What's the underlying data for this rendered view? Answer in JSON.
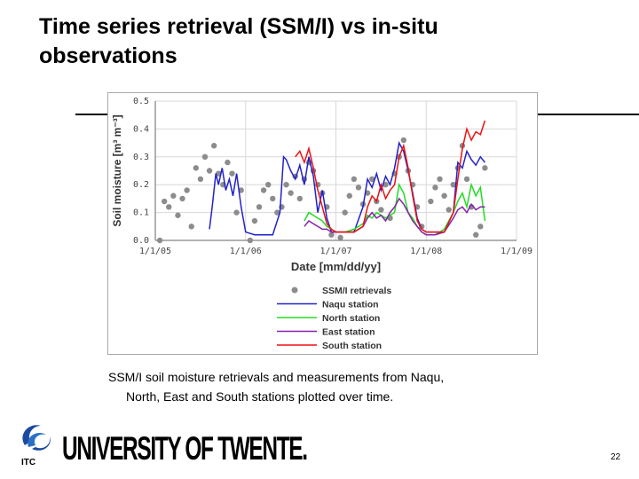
{
  "slide": {
    "title_line1": "Time series retrieval (SSM/I) vs in-situ",
    "title_line2": "observations",
    "caption_line1": "SSM/I soil moisture retrievals and measurements from Naqu,",
    "caption_line2": "North, East and South stations plotted over time.",
    "logo_text": "UNIVERSITY OF TWENTE.",
    "logo_subtext": "ITC",
    "page_number": "22"
  },
  "chart_data": {
    "type": "line",
    "xlabel": "Date [mm/dd/yy]",
    "ylabel": "Soil moisture [m³ m⁻³]",
    "xlim": [
      2005.0,
      2009.0
    ],
    "ylim": [
      0.0,
      0.5
    ],
    "x_ticks": [
      {
        "value": 2005.0,
        "label": "1/1/05"
      },
      {
        "value": 2006.0,
        "label": "1/1/06"
      },
      {
        "value": 2007.0,
        "label": "1/1/07"
      },
      {
        "value": 2008.0,
        "label": "1/1/08"
      },
      {
        "value": 2009.0,
        "label": "1/1/09"
      }
    ],
    "y_ticks": [
      {
        "value": 0.0,
        "label": "0.0"
      },
      {
        "value": 0.1,
        "label": "0.1"
      },
      {
        "value": 0.2,
        "label": "0.2"
      },
      {
        "value": 0.3,
        "label": "0.3"
      },
      {
        "value": 0.4,
        "label": "0.4"
      },
      {
        "value": 0.5,
        "label": "0.5"
      }
    ],
    "grid": true,
    "legend_position": "bottom-center",
    "series": [
      {
        "name": "SSM/I retrievals",
        "kind": "scatter",
        "color": "#8c8c8c",
        "x": [
          2005.05,
          2005.1,
          2005.15,
          2005.2,
          2005.25,
          2005.3,
          2005.35,
          2005.4,
          2005.45,
          2005.5,
          2005.55,
          2005.6,
          2005.65,
          2005.7,
          2005.75,
          2005.8,
          2005.85,
          2005.9,
          2005.95,
          2006.05,
          2006.1,
          2006.15,
          2006.2,
          2006.25,
          2006.3,
          2006.35,
          2006.4,
          2006.45,
          2006.5,
          2006.55,
          2006.6,
          2006.65,
          2006.7,
          2006.75,
          2006.8,
          2006.85,
          2006.9,
          2006.95,
          2007.05,
          2007.1,
          2007.15,
          2007.2,
          2007.25,
          2007.3,
          2007.35,
          2007.4,
          2007.45,
          2007.5,
          2007.55,
          2007.6,
          2007.65,
          2007.7,
          2007.75,
          2007.8,
          2007.85,
          2007.9,
          2007.95,
          2008.05,
          2008.1,
          2008.15,
          2008.2,
          2008.25,
          2008.3,
          2008.35,
          2008.4,
          2008.45,
          2008.5,
          2008.55,
          2008.6,
          2008.65
        ],
        "y": [
          0.0,
          0.14,
          0.12,
          0.16,
          0.09,
          0.15,
          0.18,
          0.05,
          0.26,
          0.22,
          0.3,
          0.25,
          0.34,
          0.24,
          0.2,
          0.28,
          0.24,
          0.1,
          0.18,
          0.0,
          0.07,
          0.12,
          0.18,
          0.2,
          0.15,
          0.1,
          0.12,
          0.2,
          0.17,
          0.23,
          0.15,
          0.22,
          0.28,
          0.25,
          0.2,
          0.17,
          0.12,
          0.02,
          0.01,
          0.1,
          0.16,
          0.22,
          0.19,
          0.13,
          0.17,
          0.22,
          0.14,
          0.11,
          0.2,
          0.08,
          0.24,
          0.3,
          0.36,
          0.25,
          0.2,
          0.12,
          0.05,
          0.14,
          0.19,
          0.22,
          0.16,
          0.11,
          0.2,
          0.26,
          0.34,
          0.22,
          0.12,
          0.02,
          0.05,
          0.26
        ]
      },
      {
        "name": "Naqu station",
        "kind": "line",
        "color": "#2222cc",
        "x": [
          2005.6,
          2005.63,
          2005.67,
          2005.7,
          2005.74,
          2005.78,
          2005.82,
          2005.86,
          2005.9,
          2005.95,
          2006.0,
          2006.1,
          2006.2,
          2006.3,
          2006.38,
          2006.42,
          2006.45,
          2006.5,
          2006.55,
          2006.6,
          2006.65,
          2006.7,
          2006.75,
          2006.8,
          2006.85,
          2006.9,
          2006.95,
          2007.0,
          2007.1,
          2007.2,
          2007.3,
          2007.35,
          2007.4,
          2007.45,
          2007.5,
          2007.55,
          2007.6,
          2007.65,
          2007.7,
          2007.75,
          2007.8,
          2007.85,
          2007.9,
          2007.95,
          2008.0,
          2008.1,
          2008.2,
          2008.3,
          2008.35,
          2008.4,
          2008.45,
          2008.5,
          2008.55,
          2008.6,
          2008.65
        ],
        "y": [
          0.04,
          0.12,
          0.24,
          0.2,
          0.26,
          0.18,
          0.22,
          0.16,
          0.24,
          0.12,
          0.03,
          0.02,
          0.02,
          0.02,
          0.1,
          0.3,
          0.29,
          0.25,
          0.22,
          0.27,
          0.2,
          0.3,
          0.23,
          0.1,
          0.18,
          0.08,
          0.03,
          0.03,
          0.03,
          0.03,
          0.12,
          0.22,
          0.19,
          0.24,
          0.18,
          0.23,
          0.2,
          0.26,
          0.35,
          0.32,
          0.25,
          0.17,
          0.08,
          0.04,
          0.03,
          0.03,
          0.03,
          0.1,
          0.28,
          0.26,
          0.32,
          0.29,
          0.27,
          0.3,
          0.28
        ]
      },
      {
        "name": "North station",
        "kind": "line",
        "color": "#22dd22",
        "x": [
          2006.65,
          2006.7,
          2006.75,
          2006.8,
          2006.85,
          2006.9,
          2006.95,
          2007.0,
          2007.1,
          2007.2,
          2007.3,
          2007.35,
          2007.4,
          2007.45,
          2007.5,
          2007.55,
          2007.6,
          2007.65,
          2007.7,
          2007.75,
          2007.8,
          2007.85,
          2007.9,
          2007.95,
          2008.0,
          2008.1,
          2008.2,
          2008.3,
          2008.35,
          2008.4,
          2008.45,
          2008.5,
          2008.55,
          2008.6,
          2008.65
        ],
        "y": [
          0.07,
          0.1,
          0.09,
          0.08,
          0.07,
          0.05,
          0.04,
          0.03,
          0.03,
          0.04,
          0.06,
          0.09,
          0.08,
          0.1,
          0.09,
          0.08,
          0.09,
          0.1,
          0.2,
          0.17,
          0.1,
          0.08,
          0.05,
          0.03,
          0.02,
          0.02,
          0.04,
          0.1,
          0.14,
          0.17,
          0.12,
          0.2,
          0.16,
          0.19,
          0.07
        ]
      },
      {
        "name": "East station",
        "kind": "line",
        "color": "#8822aa",
        "x": [
          2006.65,
          2006.7,
          2006.75,
          2006.8,
          2006.85,
          2006.9,
          2006.95,
          2007.0,
          2007.1,
          2007.2,
          2007.3,
          2007.35,
          2007.4,
          2007.45,
          2007.5,
          2007.55,
          2007.6,
          2007.65,
          2007.7,
          2007.75,
          2007.8,
          2007.85,
          2007.9,
          2007.95,
          2008.0,
          2008.1,
          2008.2,
          2008.3,
          2008.35,
          2008.4,
          2008.45,
          2008.5,
          2008.55,
          2008.6,
          2008.65
        ],
        "y": [
          0.05,
          0.07,
          0.06,
          0.05,
          0.04,
          0.04,
          0.03,
          0.03,
          0.03,
          0.03,
          0.05,
          0.08,
          0.1,
          0.08,
          0.09,
          0.07,
          0.1,
          0.12,
          0.15,
          0.13,
          0.1,
          0.07,
          0.05,
          0.03,
          0.02,
          0.02,
          0.03,
          0.08,
          0.11,
          0.12,
          0.1,
          0.13,
          0.11,
          0.12,
          0.12
        ]
      },
      {
        "name": "South station",
        "kind": "line",
        "color": "#ee1111",
        "x": [
          2006.55,
          2006.6,
          2006.65,
          2006.7,
          2006.75,
          2006.8,
          2006.85,
          2006.9,
          2006.95,
          2007.0,
          2007.1,
          2007.2,
          2007.3,
          2007.35,
          2007.4,
          2007.45,
          2007.5,
          2007.55,
          2007.6,
          2007.65,
          2007.7,
          2007.75,
          2007.8,
          2007.85,
          2007.9,
          2007.95,
          2008.0,
          2008.1,
          2008.2,
          2008.3,
          2008.35,
          2008.4,
          2008.45,
          2008.5,
          2008.55,
          2008.6,
          2008.65
        ],
        "y": [
          0.3,
          0.32,
          0.28,
          0.33,
          0.26,
          0.18,
          0.12,
          0.06,
          0.04,
          0.03,
          0.03,
          0.03,
          0.05,
          0.12,
          0.16,
          0.14,
          0.2,
          0.15,
          0.18,
          0.2,
          0.3,
          0.34,
          0.26,
          0.16,
          0.07,
          0.04,
          0.03,
          0.03,
          0.03,
          0.1,
          0.22,
          0.33,
          0.4,
          0.36,
          0.39,
          0.38,
          0.43
        ]
      }
    ]
  }
}
